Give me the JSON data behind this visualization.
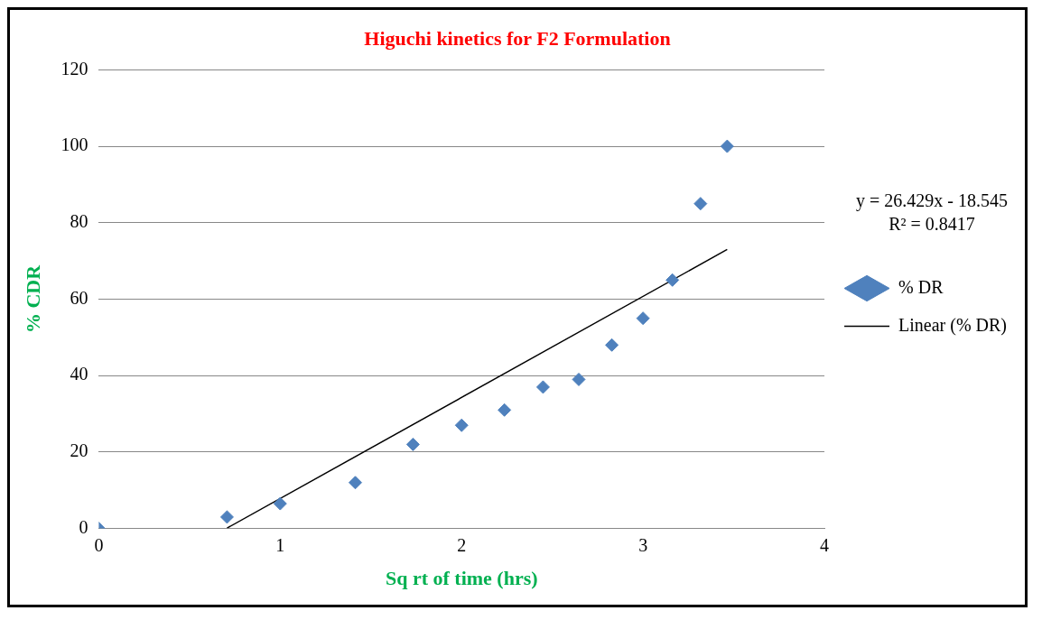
{
  "chart_data": {
    "type": "scatter",
    "title": "Higuchi kinetics for F2 Formulation",
    "xlabel": "Sq rt of time (hrs)",
    "ylabel": "% CDR",
    "x": [
      0,
      0.707,
      1,
      1.414,
      1.732,
      2,
      2.236,
      2.449,
      2.646,
      2.828,
      3,
      3.162,
      3.317,
      3.464
    ],
    "series": [
      {
        "name": "% DR",
        "color": "#4f81bd",
        "marker": "diamond",
        "values": [
          0,
          3,
          6.5,
          12,
          22,
          27,
          31,
          37,
          39,
          48,
          55,
          65,
          85,
          100
        ]
      },
      {
        "name": "Linear (% DR)",
        "type": "line",
        "color": "#000000",
        "marker": "none",
        "line_style": "solid",
        "x": [
          0.707,
          3.464
        ],
        "values": [
          0.1,
          73
        ]
      }
    ],
    "annotations": [
      "y = 26.429x - 18.545",
      "R² = 0.8417"
    ],
    "xlim": [
      0,
      4
    ],
    "xticks": [
      0,
      1,
      2,
      3,
      4
    ],
    "ylim": [
      0,
      120
    ],
    "yticks": [
      0,
      20,
      40,
      60,
      80,
      100,
      120
    ],
    "grid": "y",
    "legend": "right"
  }
}
